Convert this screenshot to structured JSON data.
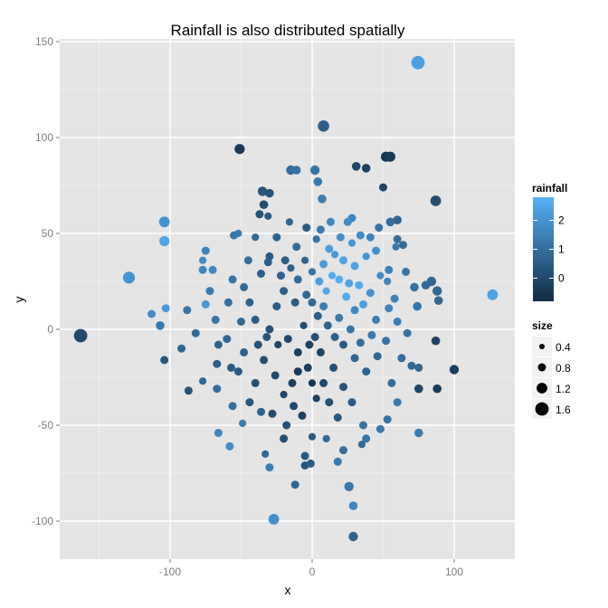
{
  "chart_data": {
    "type": "scatter",
    "title": "Rainfall is also distributed spatially",
    "xlabel": "x",
    "ylabel": "y",
    "xlim": [
      -178,
      142
    ],
    "ylim": [
      -120,
      152
    ],
    "x_ticks": [
      -100,
      0,
      100
    ],
    "x_tick_labels": [
      "-100",
      "0",
      "100"
    ],
    "x_minor": [
      -150,
      -50,
      50
    ],
    "y_ticks": [
      -100,
      -50,
      0,
      50,
      100,
      150
    ],
    "y_tick_labels": [
      "-100",
      "-50",
      "0",
      "50",
      "100",
      "150"
    ],
    "y_minor": [
      -75,
      -25,
      25,
      75,
      125
    ],
    "grid": true,
    "panel_background": "#e5e5e5",
    "grid_color": "#ffffff",
    "legend_position": "right",
    "color_legend": {
      "title": "rainfall",
      "breaks": [
        2,
        1,
        0
      ],
      "labels": [
        "2",
        "1",
        "0"
      ],
      "range": [
        -0.8,
        2.8
      ],
      "low_color": "#132b43",
      "high_color": "#56b1f7"
    },
    "size_legend": {
      "title": "size",
      "breaks": [
        0.4,
        0.8,
        1.2,
        1.6
      ],
      "labels": [
        "0.4",
        "0.8",
        "1.2",
        "1.6"
      ]
    },
    "points": [
      [
        74.5,
        139,
        2.3,
        1.6
      ],
      [
        -163,
        -3.3,
        0.0,
        1.6
      ],
      [
        -129,
        27,
        2.0,
        1.4
      ],
      [
        -104,
        56,
        2.0,
        1.2
      ],
      [
        -104,
        46,
        2.5,
        1.1
      ],
      [
        127,
        18,
        2.4,
        1.2
      ],
      [
        8,
        106,
        0.6,
        1.3
      ],
      [
        -51,
        94,
        -0.4,
        1.1
      ],
      [
        -27,
        -99,
        1.9,
        1.2
      ],
      [
        29,
        -108,
        0.7,
        1.0
      ],
      [
        100,
        -21,
        -0.3,
        1.0
      ],
      [
        87,
        67,
        0.1,
        1.2
      ],
      [
        52,
        90,
        -0.5,
        1.1
      ],
      [
        55,
        90,
        -0.4,
        1.1
      ],
      [
        38,
        84,
        -0.2,
        0.9
      ],
      [
        31,
        85,
        -0.1,
        0.9
      ],
      [
        50,
        74,
        -0.1,
        0.8
      ],
      [
        87,
        -6,
        -0.2,
        0.9
      ],
      [
        88,
        -31,
        -0.4,
        0.9
      ],
      [
        75,
        -31,
        -0.1,
        0.9
      ],
      [
        75,
        -54,
        1.4,
        0.9
      ],
      [
        26,
        -82,
        1.3,
        1.0
      ],
      [
        29,
        -92,
        1.6,
        0.9
      ],
      [
        -12,
        -81,
        0.8,
        0.8
      ],
      [
        -30,
        -72,
        1.4,
        0.8
      ],
      [
        -33,
        -65,
        0.8,
        0.7
      ],
      [
        -58,
        -61,
        1.8,
        0.8
      ],
      [
        -66,
        -54,
        1.6,
        0.8
      ],
      [
        -87,
        -32,
        0.2,
        0.8
      ],
      [
        -104,
        -16,
        0.4,
        0.8
      ],
      [
        -107,
        2,
        1.3,
        0.9
      ],
      [
        -113,
        8,
        1.8,
        0.8
      ],
      [
        -103,
        11,
        2.2,
        0.8
      ],
      [
        -75,
        13,
        2.1,
        0.8
      ],
      [
        -77,
        31,
        1.7,
        0.8
      ],
      [
        -77,
        36,
        1.8,
        0.7
      ],
      [
        -70,
        31,
        1.7,
        0.8
      ],
      [
        -75,
        41,
        1.5,
        0.8
      ],
      [
        -52,
        50,
        1.3,
        0.7
      ],
      [
        -55,
        49,
        1.2,
        0.8
      ],
      [
        -35,
        72,
        0.3,
        1.0
      ],
      [
        -30,
        71,
        0.3,
        0.9
      ],
      [
        -34,
        65,
        0.1,
        0.9
      ],
      [
        -37,
        60,
        0.3,
        0.8
      ],
      [
        -31,
        59,
        0.5,
        0.7
      ],
      [
        -15,
        83,
        1.0,
        1.0
      ],
      [
        -11,
        83,
        1.1,
        0.9
      ],
      [
        2,
        83,
        1.2,
        1.0
      ],
      [
        7,
        68,
        1.4,
        0.9
      ],
      [
        4,
        77,
        1.3,
        0.9
      ],
      [
        -4,
        53,
        0.4,
        0.8
      ],
      [
        -16,
        56,
        0.8,
        0.7
      ],
      [
        -30,
        38,
        0.5,
        0.8
      ],
      [
        -31,
        35,
        0.6,
        0.8
      ],
      [
        -19,
        36,
        0.6,
        0.8
      ],
      [
        -15,
        32,
        0.7,
        0.7
      ],
      [
        -36,
        29,
        0.6,
        0.8
      ],
      [
        -11,
        43,
        0.9,
        0.8
      ],
      [
        -5,
        36,
        0.8,
        0.7
      ],
      [
        3,
        47,
        1.1,
        0.7
      ],
      [
        6,
        52,
        1.3,
        0.8
      ],
      [
        13,
        56,
        1.7,
        0.8
      ],
      [
        25,
        56,
        1.8,
        0.8
      ],
      [
        28,
        58,
        1.6,
        0.8
      ],
      [
        20,
        48,
        1.9,
        0.8
      ],
      [
        28,
        45,
        2.1,
        0.7
      ],
      [
        34,
        49,
        1.8,
        0.8
      ],
      [
        41,
        48,
        1.6,
        0.8
      ],
      [
        12,
        42,
        2.3,
        0.8
      ],
      [
        16,
        39,
        2.2,
        0.7
      ],
      [
        22,
        36,
        2.4,
        0.8
      ],
      [
        8,
        34,
        2.2,
        0.8
      ],
      [
        30,
        33,
        2.4,
        0.8
      ],
      [
        38,
        38,
        2.0,
        0.7
      ],
      [
        45,
        41,
        1.9,
        0.8
      ],
      [
        14,
        28,
        2.6,
        0.7
      ],
      [
        19,
        26,
        2.7,
        0.8
      ],
      [
        26,
        24,
        2.5,
        0.8
      ],
      [
        33,
        23,
        2.6,
        0.8
      ],
      [
        5,
        25,
        2.3,
        0.8
      ],
      [
        10,
        20,
        2.5,
        0.7
      ],
      [
        24,
        17,
        2.6,
        0.8
      ],
      [
        36,
        13,
        2.3,
        0.8
      ],
      [
        41,
        19,
        2.0,
        0.8
      ],
      [
        48,
        28,
        1.8,
        0.7
      ],
      [
        53,
        25,
        1.6,
        0.7
      ],
      [
        54,
        31,
        1.5,
        0.8
      ],
      [
        59,
        43,
        1.3,
        0.7
      ],
      [
        47,
        53,
        1.2,
        0.8
      ],
      [
        55,
        56,
        1.0,
        0.9
      ],
      [
        60,
        47,
        1.0,
        0.8
      ],
      [
        64,
        44,
        0.9,
        0.8
      ],
      [
        60,
        57,
        0.8,
        0.9
      ],
      [
        84,
        25,
        0.8,
        1.0
      ],
      [
        80,
        23,
        0.9,
        0.9
      ],
      [
        72,
        22,
        1.1,
        0.9
      ],
      [
        74,
        12,
        1.2,
        0.9
      ],
      [
        88,
        20,
        0.8,
        1.0
      ],
      [
        89,
        15,
        0.8,
        0.9
      ],
      [
        54,
        11,
        1.6,
        0.8
      ],
      [
        60,
        4,
        1.4,
        0.8
      ],
      [
        67,
        -2,
        1.2,
        0.8
      ],
      [
        63,
        -15,
        1.0,
        0.8
      ],
      [
        70,
        -19,
        0.9,
        0.8
      ],
      [
        75,
        -20,
        0.8,
        0.8
      ],
      [
        56,
        -28,
        1.0,
        0.8
      ],
      [
        60,
        -38,
        1.3,
        0.8
      ],
      [
        53,
        -47,
        1.1,
        0.8
      ],
      [
        48,
        -52,
        1.3,
        0.8
      ],
      [
        36,
        -50,
        1.1,
        0.8
      ],
      [
        38,
        -57,
        1.2,
        0.8
      ],
      [
        35,
        -60,
        0.9,
        0.7
      ],
      [
        22,
        -63,
        1.0,
        0.8
      ],
      [
        18,
        -69,
        1.3,
        0.8
      ],
      [
        10,
        -57,
        0.8,
        0.7
      ],
      [
        0,
        -56,
        0.5,
        0.7
      ],
      [
        -5,
        -66,
        0.4,
        0.8
      ],
      [
        -5,
        -71,
        0.3,
        0.8
      ],
      [
        -1,
        -70,
        0.5,
        0.8
      ],
      [
        -20,
        -57,
        0.1,
        0.8
      ],
      [
        -36,
        -43,
        0.7,
        0.8
      ],
      [
        -49,
        -49,
        1.4,
        0.7
      ],
      [
        -56,
        -40,
        1.0,
        0.8
      ],
      [
        -67,
        -31,
        1.0,
        0.8
      ],
      [
        -77,
        -27,
        0.8,
        0.7
      ],
      [
        -67,
        -18,
        0.6,
        0.8
      ],
      [
        -57,
        -20,
        0.5,
        0.8
      ],
      [
        -52,
        -22,
        0.5,
        0.8
      ],
      [
        -48,
        -12,
        0.7,
        0.8
      ],
      [
        -60,
        -5,
        0.8,
        0.8
      ],
      [
        -68,
        5,
        1.2,
        0.8
      ],
      [
        -59,
        14,
        1.0,
        0.8
      ],
      [
        -48,
        22,
        0.9,
        0.8
      ],
      [
        -44,
        14,
        0.7,
        0.8
      ],
      [
        -40,
        5,
        0.5,
        0.8
      ],
      [
        -32,
        -4,
        0.3,
        0.8
      ],
      [
        -34,
        -16,
        0.1,
        0.8
      ],
      [
        -26,
        -24,
        0.0,
        0.8
      ],
      [
        -20,
        -34,
        -0.1,
        0.7
      ],
      [
        -13,
        -40,
        0.0,
        0.8
      ],
      [
        -7,
        -45,
        -0.2,
        0.8
      ],
      [
        3,
        -36,
        -0.2,
        0.7
      ],
      [
        8,
        -28,
        0.0,
        0.8
      ],
      [
        15,
        -20,
        0.2,
        0.8
      ],
      [
        22,
        -30,
        0.3,
        0.8
      ],
      [
        28,
        -38,
        0.5,
        0.8
      ],
      [
        -3,
        -20,
        -0.3,
        0.8
      ],
      [
        -10,
        -12,
        -0.2,
        0.8
      ],
      [
        -17,
        -5,
        0.0,
        0.8
      ],
      [
        -6,
        2,
        0.1,
        0.7
      ],
      [
        4,
        7,
        0.6,
        0.8
      ],
      [
        11,
        2,
        0.7,
        0.8
      ],
      [
        19,
        6,
        1.3,
        0.8
      ],
      [
        27,
        0,
        1.2,
        0.8
      ],
      [
        34,
        -7,
        1.0,
        0.8
      ],
      [
        42,
        -3,
        1.3,
        0.8
      ],
      [
        46,
        -14,
        0.8,
        0.8
      ],
      [
        38,
        -22,
        0.7,
        0.8
      ],
      [
        30,
        -15,
        0.8,
        0.8
      ],
      [
        -25,
        12,
        0.5,
        0.8
      ],
      [
        -20,
        20,
        0.6,
        0.8
      ],
      [
        -12,
        14,
        0.5,
        0.8
      ],
      [
        -4,
        18,
        0.8,
        0.8
      ],
      [
        -40,
        -28,
        0.2,
        0.8
      ],
      [
        -44,
        -38,
        0.4,
        0.8
      ],
      [
        -28,
        -44,
        0.1,
        0.8
      ],
      [
        -18,
        -50,
        0.2,
        0.8
      ],
      [
        -10,
        -22,
        -0.4,
        0.8
      ],
      [
        0,
        -28,
        -0.5,
        0.7
      ],
      [
        -2,
        -8,
        -0.2,
        0.8
      ],
      [
        6,
        -12,
        -0.1,
        0.8
      ],
      [
        -14,
        -28,
        -0.3,
        0.8
      ],
      [
        -24,
        -8,
        -0.1,
        0.7
      ],
      [
        -30,
        0,
        0.2,
        0.8
      ],
      [
        -38,
        -8,
        0.2,
        0.8
      ],
      [
        16,
        -4,
        0.6,
        0.8
      ],
      [
        22,
        -8,
        0.5,
        0.8
      ],
      [
        2,
        -4,
        0.2,
        0.8
      ],
      [
        12,
        -38,
        0.2,
        0.8
      ],
      [
        18,
        -46,
        0.4,
        0.8
      ],
      [
        -50,
        4,
        0.8,
        0.8
      ],
      [
        -56,
        26,
        1.1,
        0.8
      ],
      [
        -45,
        36,
        1.0,
        0.8
      ],
      [
        -25,
        48,
        0.7,
        0.8
      ],
      [
        -40,
        48,
        0.9,
        0.7
      ],
      [
        -22,
        28,
        0.7,
        0.8
      ],
      [
        -10,
        26,
        0.9,
        0.8
      ],
      [
        0,
        30,
        1.1,
        0.7
      ],
      [
        0,
        14,
        0.9,
        0.8
      ],
      [
        8,
        12,
        1.4,
        0.8
      ],
      [
        30,
        10,
        1.7,
        0.8
      ],
      [
        45,
        5,
        1.4,
        0.8
      ],
      [
        52,
        -6,
        1.1,
        0.8
      ],
      [
        58,
        16,
        1.5,
        0.8
      ],
      [
        66,
        30,
        1.2,
        0.8
      ],
      [
        -66,
        -8,
        0.7,
        0.8
      ],
      [
        -82,
        -2,
        0.9,
        0.8
      ],
      [
        -88,
        10,
        1.2,
        0.8
      ],
      [
        -92,
        -10,
        0.8,
        0.8
      ],
      [
        -72,
        20,
        1.3,
        0.8
      ]
    ]
  }
}
